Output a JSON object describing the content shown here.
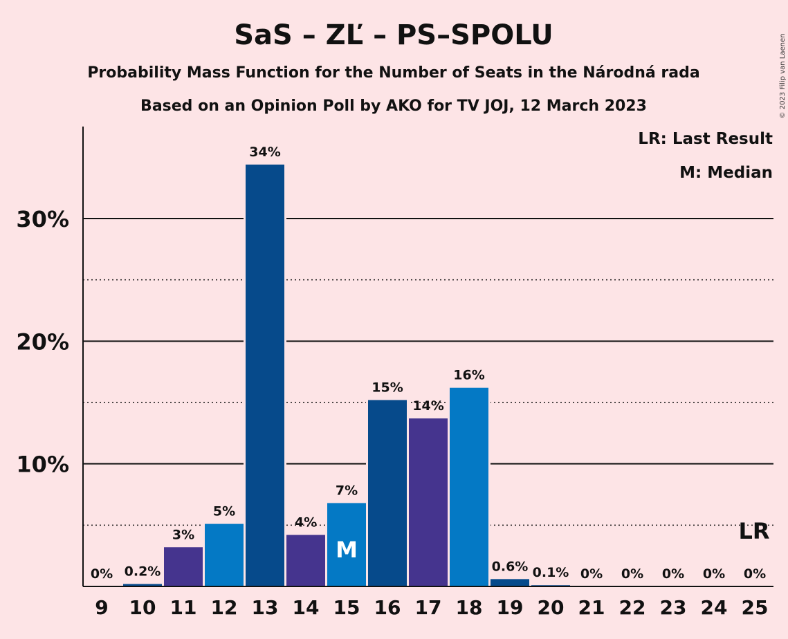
{
  "title": "SaS – ZĽ – PS–SPOLU",
  "subtitle1": "Probability Mass Function for the Number of Seats in the Národná rada",
  "subtitle2": "Based on an Opinion Poll by AKO for TV JOJ, 12 March 2023",
  "legend": {
    "last_result": "LR: Last Result",
    "median": "M: Median"
  },
  "copyright": "© 2023 Filip van Laenen",
  "colors": {
    "background": "#FDE4E6",
    "navy": "#064A8B",
    "purple": "#45348E",
    "blue": "#0479C5"
  },
  "chart_data": {
    "type": "bar",
    "categories": [
      "9",
      "10",
      "11",
      "12",
      "13",
      "14",
      "15",
      "16",
      "17",
      "18",
      "19",
      "20",
      "21",
      "22",
      "23",
      "24",
      "25"
    ],
    "values": [
      0,
      0.2,
      3.2,
      5.1,
      34.4,
      4.2,
      6.8,
      15.2,
      13.7,
      16.2,
      0.6,
      0.1,
      0,
      0,
      0,
      0,
      0
    ],
    "labels": [
      "0%",
      "0.2%",
      "3%",
      "5%",
      "34%",
      "4%",
      "7%",
      "15%",
      "14%",
      "16%",
      "0.6%",
      "0.1%",
      "0%",
      "0%",
      "0%",
      "0%",
      "0%"
    ],
    "bar_colors": [
      "#064A8B",
      "#064A8B",
      "#45348E",
      "#0479C5",
      "#064A8B",
      "#45348E",
      "#0479C5",
      "#064A8B",
      "#45348E",
      "#0479C5",
      "#064A8B",
      "#064A8B",
      "#064A8B",
      "#064A8B",
      "#064A8B",
      "#064A8B",
      "#064A8B"
    ],
    "median_category": "15",
    "median_marker": "M",
    "last_result_category": "25",
    "last_result_marker": "LR",
    "ylim": [
      0,
      37.5
    ],
    "yticks": [
      10,
      20,
      30
    ],
    "ytick_labels": [
      "10%",
      "20%",
      "30%"
    ],
    "minor_gridlines": [
      5,
      15,
      25
    ],
    "grid": true,
    "legend_position": "top-right"
  }
}
